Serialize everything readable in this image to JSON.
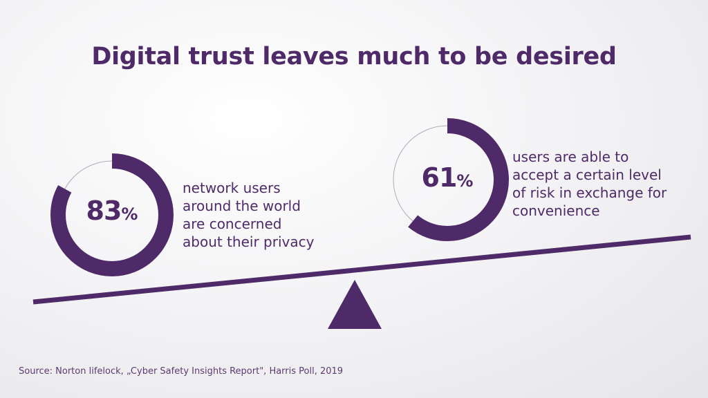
{
  "title": "Digital trust leaves much to be desired",
  "colors": {
    "accent": "#4f2a68",
    "track": "#b3a8bb"
  },
  "stats": [
    {
      "number": "83",
      "unit": "%",
      "progress": 0.83,
      "description": "network users\naround the world\nare concerned\nabout their privacy"
    },
    {
      "number": "61",
      "unit": "%",
      "progress": 0.61,
      "description": "users are able to\naccept a certain level\nof risk in exchange for\nconvenience"
    }
  ],
  "source": "Source: Norton lifelock, „Cyber Safety Insights Report\", Harris Poll, 2019"
}
